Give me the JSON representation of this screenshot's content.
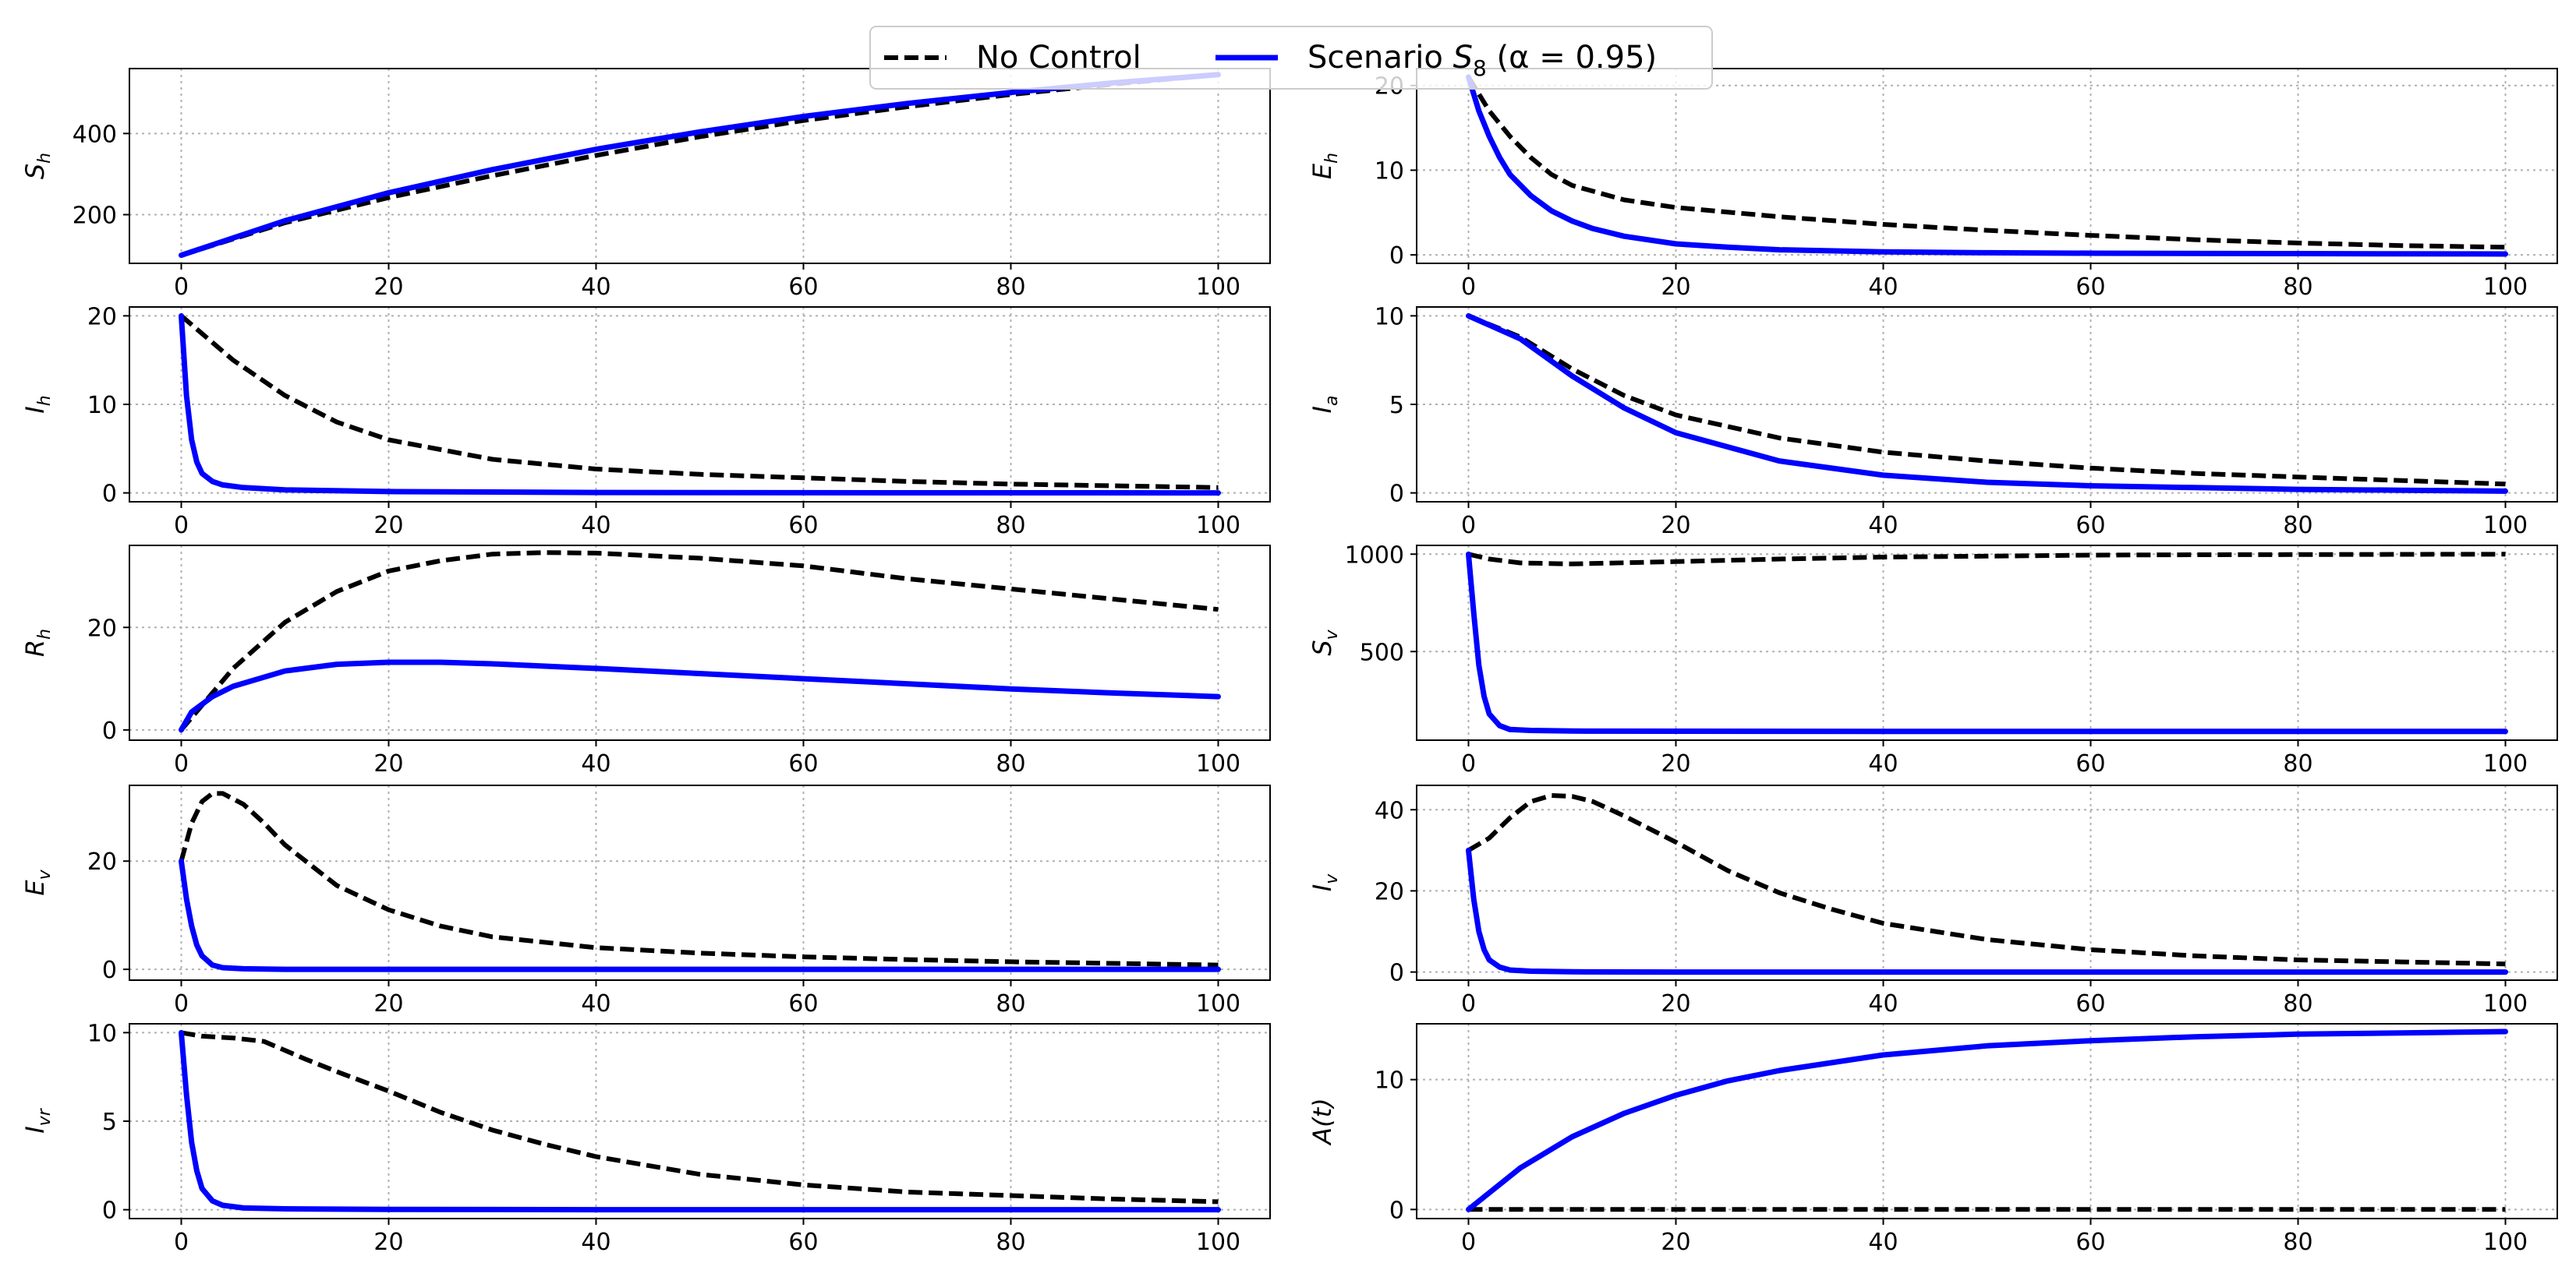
{
  "legend": {
    "no_control_label": "No Control",
    "scenario_label_prefix": "Scenario ",
    "scenario_symbol": "S",
    "scenario_subscript": "8",
    "scenario_alpha_text": " (α = 0.95)",
    "no_control_color": "#000000",
    "scenario_color": "#0000ff"
  },
  "chart_data": [
    {
      "type": "line",
      "id": "Sh",
      "ylabel": "S",
      "ylabel_sub": "h",
      "xlim": [
        -5,
        105
      ],
      "ylim": [
        80,
        560
      ],
      "xticks": [
        0,
        20,
        40,
        60,
        80,
        100
      ],
      "yticks": [
        200,
        400
      ],
      "series": [
        {
          "name": "No Control",
          "x": [
            0,
            10,
            20,
            30,
            40,
            50,
            60,
            70,
            80,
            90,
            100
          ],
          "y": [
            100,
            180,
            242,
            296,
            346,
            392,
            432,
            466,
            496,
            522,
            545
          ]
        },
        {
          "name": "Scenario S8 (α = 0.95)",
          "x": [
            0,
            10,
            20,
            30,
            40,
            50,
            60,
            70,
            80,
            90,
            100
          ],
          "y": [
            100,
            185,
            254,
            311,
            361,
            404,
            442,
            474,
            501,
            525,
            545
          ]
        }
      ]
    },
    {
      "type": "line",
      "id": "Eh",
      "ylabel": "E",
      "ylabel_sub": "h",
      "xlim": [
        -5,
        105
      ],
      "ylim": [
        -1,
        22
      ],
      "xticks": [
        0,
        20,
        40,
        60,
        80,
        100
      ],
      "yticks": [
        0,
        10,
        20
      ],
      "series": [
        {
          "name": "No Control",
          "x": [
            0,
            2,
            4,
            6,
            8,
            10,
            15,
            20,
            30,
            40,
            50,
            60,
            70,
            80,
            90,
            100
          ],
          "y": [
            21,
            17,
            14,
            11.5,
            9.5,
            8.2,
            6.5,
            5.6,
            4.5,
            3.6,
            2.9,
            2.3,
            1.8,
            1.4,
            1.1,
            0.9
          ]
        },
        {
          "name": "Scenario S8 (α = 0.95)",
          "x": [
            0,
            1,
            2,
            3,
            4,
            6,
            8,
            10,
            12,
            15,
            20,
            25,
            30,
            40,
            50,
            60,
            80,
            100
          ],
          "y": [
            21,
            17,
            14,
            11.5,
            9.5,
            7,
            5.2,
            4,
            3.1,
            2.2,
            1.3,
            0.9,
            0.6,
            0.35,
            0.25,
            0.2,
            0.15,
            0.1
          ]
        }
      ]
    },
    {
      "type": "line",
      "id": "Ih",
      "ylabel": "I",
      "ylabel_sub": "h",
      "xlim": [
        -5,
        105
      ],
      "ylim": [
        -1,
        21
      ],
      "xticks": [
        0,
        20,
        40,
        60,
        80,
        100
      ],
      "yticks": [
        0,
        10,
        20
      ],
      "series": [
        {
          "name": "No Control",
          "x": [
            0,
            5,
            10,
            15,
            20,
            30,
            40,
            50,
            60,
            70,
            80,
            90,
            100
          ],
          "y": [
            20,
            15,
            11,
            8,
            6,
            3.8,
            2.7,
            2.1,
            1.7,
            1.3,
            1,
            0.8,
            0.6
          ]
        },
        {
          "name": "Scenario S8 (α = 0.95)",
          "x": [
            0,
            0.5,
            1,
            1.5,
            2,
            3,
            4,
            6,
            10,
            20,
            40,
            60,
            100
          ],
          "y": [
            20,
            11,
            6,
            3.5,
            2.2,
            1.3,
            0.9,
            0.6,
            0.35,
            0.15,
            0.05,
            0.02,
            0
          ]
        }
      ]
    },
    {
      "type": "line",
      "id": "Ia",
      "ylabel": "I",
      "ylabel_sub": "a",
      "xlim": [
        -5,
        105
      ],
      "ylim": [
        -0.5,
        10.5
      ],
      "xticks": [
        0,
        20,
        40,
        60,
        80,
        100
      ],
      "yticks": [
        0,
        5,
        10
      ],
      "series": [
        {
          "name": "No Control",
          "x": [
            0,
            5,
            10,
            15,
            20,
            30,
            40,
            50,
            60,
            70,
            80,
            90,
            100
          ],
          "y": [
            10,
            8.8,
            7,
            5.5,
            4.4,
            3.1,
            2.3,
            1.8,
            1.4,
            1.1,
            0.9,
            0.7,
            0.5
          ]
        },
        {
          "name": "Scenario S8 (α = 0.95)",
          "x": [
            0,
            5,
            10,
            15,
            20,
            30,
            40,
            50,
            60,
            70,
            80,
            90,
            100
          ],
          "y": [
            10,
            8.7,
            6.6,
            4.8,
            3.4,
            1.8,
            1,
            0.6,
            0.4,
            0.3,
            0.2,
            0.15,
            0.1
          ]
        }
      ]
    },
    {
      "type": "line",
      "id": "Rh",
      "ylabel": "R",
      "ylabel_sub": "h",
      "xlim": [
        -5,
        105
      ],
      "ylim": [
        -2,
        36
      ],
      "xticks": [
        0,
        20,
        40,
        60,
        80,
        100
      ],
      "yticks": [
        0,
        20
      ],
      "series": [
        {
          "name": "No Control",
          "x": [
            0,
            5,
            10,
            15,
            20,
            25,
            30,
            35,
            40,
            50,
            60,
            70,
            80,
            90,
            100
          ],
          "y": [
            0,
            12,
            21,
            27,
            31,
            33,
            34.3,
            34.6,
            34.5,
            33.5,
            32,
            29.5,
            27.5,
            25.5,
            23.5
          ]
        },
        {
          "name": "Scenario S8 (α = 0.95)",
          "x": [
            0,
            1,
            3,
            5,
            10,
            15,
            20,
            25,
            30,
            40,
            50,
            60,
            70,
            80,
            90,
            100
          ],
          "y": [
            0,
            3.5,
            6.5,
            8.5,
            11.5,
            12.8,
            13.2,
            13.2,
            12.9,
            12,
            11,
            10,
            9,
            8,
            7.2,
            6.5
          ]
        }
      ]
    },
    {
      "type": "line",
      "id": "Sv",
      "ylabel": "S",
      "ylabel_sub": "v",
      "xlim": [
        -5,
        105
      ],
      "ylim": [
        45,
        1045
      ],
      "xticks": [
        0,
        20,
        40,
        60,
        80,
        100
      ],
      "yticks": [
        500,
        1000
      ],
      "series": [
        {
          "name": "No Control",
          "x": [
            0,
            2,
            5,
            10,
            20,
            30,
            40,
            50,
            60,
            70,
            80,
            90,
            100
          ],
          "y": [
            1000,
            975,
            955,
            950,
            962,
            975,
            985,
            990,
            995,
            997,
            998,
            999,
            1000
          ]
        },
        {
          "name": "Scenario S8 (α = 0.95)",
          "x": [
            0,
            0.5,
            1,
            1.5,
            2,
            3,
            4,
            6,
            10,
            20,
            40,
            60,
            80,
            100
          ],
          "y": [
            1000,
            700,
            430,
            270,
            180,
            120,
            100,
            95,
            92,
            91,
            90,
            90,
            90,
            90
          ]
        }
      ]
    },
    {
      "type": "line",
      "id": "Ev",
      "ylabel": "E",
      "ylabel_sub": "v",
      "xlim": [
        -5,
        105
      ],
      "ylim": [
        -2,
        34
      ],
      "xticks": [
        0,
        20,
        40,
        60,
        80,
        100
      ],
      "yticks": [
        0,
        20
      ],
      "series": [
        {
          "name": "No Control",
          "x": [
            0,
            1,
            2,
            3,
            4,
            6,
            8,
            10,
            15,
            20,
            25,
            30,
            40,
            50,
            60,
            70,
            80,
            90,
            100
          ],
          "y": [
            20,
            27,
            31,
            32.5,
            32.5,
            30.5,
            27,
            23,
            15.5,
            11,
            8,
            6,
            4,
            3,
            2.3,
            1.8,
            1.4,
            1.1,
            0.8
          ]
        },
        {
          "name": "Scenario S8 (α = 0.95)",
          "x": [
            0,
            0.5,
            1,
            1.5,
            2,
            3,
            4,
            6,
            10,
            20,
            40,
            60,
            100
          ],
          "y": [
            20,
            13,
            8,
            4.5,
            2.5,
            0.8,
            0.3,
            0.1,
            0,
            0,
            0,
            0,
            0
          ]
        }
      ]
    },
    {
      "type": "line",
      "id": "Iv",
      "ylabel": "I",
      "ylabel_sub": "v",
      "xlim": [
        -5,
        105
      ],
      "ylim": [
        -2,
        46
      ],
      "xticks": [
        0,
        20,
        40,
        60,
        80,
        100
      ],
      "yticks": [
        0,
        20,
        40
      ],
      "series": [
        {
          "name": "No Control",
          "x": [
            0,
            2,
            4,
            6,
            8,
            10,
            12,
            15,
            20,
            25,
            30,
            35,
            40,
            50,
            60,
            70,
            80,
            90,
            100
          ],
          "y": [
            30,
            33,
            38,
            42,
            43.5,
            43.3,
            42,
            38.5,
            32,
            25,
            19.5,
            15.5,
            12,
            8,
            5.5,
            4,
            3,
            2.5,
            2
          ]
        },
        {
          "name": "Scenario S8 (α = 0.95)",
          "x": [
            0,
            0.5,
            1,
            1.5,
            2,
            3,
            4,
            6,
            10,
            20,
            40,
            60,
            100
          ],
          "y": [
            30,
            18,
            10,
            5.5,
            3,
            1.2,
            0.5,
            0.2,
            0.05,
            0,
            0,
            0,
            0
          ]
        }
      ]
    },
    {
      "type": "line",
      "id": "Ivr",
      "ylabel": "I",
      "ylabel_sub": "vr",
      "xlim": [
        -5,
        105
      ],
      "ylim": [
        -0.5,
        10.5
      ],
      "xticks": [
        0,
        20,
        40,
        60,
        80,
        100
      ],
      "yticks": [
        0,
        5,
        10
      ],
      "series": [
        {
          "name": "No Control",
          "x": [
            0,
            2,
            5,
            8,
            10,
            12,
            15,
            20,
            25,
            30,
            35,
            40,
            50,
            60,
            70,
            80,
            90,
            100
          ],
          "y": [
            10,
            9.8,
            9.7,
            9.5,
            9,
            8.5,
            7.8,
            6.7,
            5.5,
            4.5,
            3.7,
            3,
            2,
            1.4,
            1,
            0.8,
            0.6,
            0.45
          ]
        },
        {
          "name": "Scenario S8 (α = 0.95)",
          "x": [
            0,
            0.5,
            1,
            1.5,
            2,
            3,
            4,
            6,
            10,
            20,
            40,
            60,
            100
          ],
          "y": [
            10,
            6.5,
            3.8,
            2.2,
            1.2,
            0.5,
            0.25,
            0.1,
            0.05,
            0.02,
            0,
            0,
            0
          ]
        }
      ]
    },
    {
      "type": "line",
      "id": "A",
      "ylabel": "A(t)",
      "ylabel_sub": "",
      "xlim": [
        -5,
        105
      ],
      "ylim": [
        -0.7,
        14.3
      ],
      "xticks": [
        0,
        20,
        40,
        60,
        80,
        100
      ],
      "yticks": [
        0,
        10
      ],
      "series": [
        {
          "name": "No Control",
          "x": [
            0,
            100
          ],
          "y": [
            0,
            0
          ]
        },
        {
          "name": "Scenario S8 (α = 0.95)",
          "x": [
            0,
            5,
            10,
            15,
            20,
            25,
            30,
            40,
            50,
            60,
            70,
            80,
            90,
            100
          ],
          "y": [
            0,
            3.2,
            5.6,
            7.4,
            8.8,
            9.9,
            10.7,
            11.9,
            12.6,
            13,
            13.3,
            13.5,
            13.6,
            13.7
          ]
        }
      ]
    }
  ]
}
